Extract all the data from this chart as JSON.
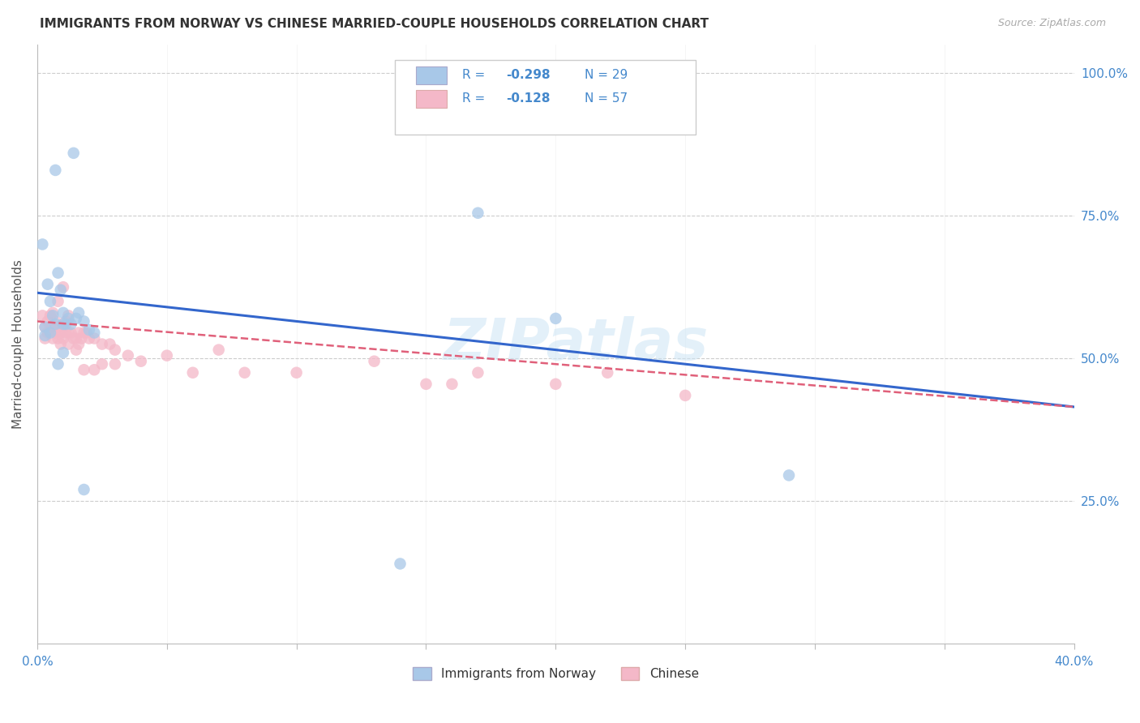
{
  "title": "IMMIGRANTS FROM NORWAY VS CHINESE MARRIED-COUPLE HOUSEHOLDS CORRELATION CHART",
  "source": "Source: ZipAtlas.com",
  "ylabel": "Married-couple Households",
  "xlim": [
    0.0,
    0.4
  ],
  "ylim": [
    0.0,
    1.05
  ],
  "yticks": [
    0.25,
    0.5,
    0.75,
    1.0
  ],
  "ytick_labels": [
    "25.0%",
    "50.0%",
    "75.0%",
    "100.0%"
  ],
  "xticks": [
    0.0,
    0.05,
    0.1,
    0.15,
    0.2,
    0.25,
    0.3,
    0.35,
    0.4
  ],
  "norway_color": "#a8c8e8",
  "chinese_color": "#f4b8c8",
  "norway_line_color": "#3366cc",
  "chinese_line_color": "#e0607a",
  "legend_text_color": "#4488cc",
  "legend_R_color": "#3366cc",
  "norway_R": -0.298,
  "norway_N": 29,
  "chinese_R": -0.128,
  "chinese_N": 57,
  "watermark": "ZIPatlas",
  "norway_line_x0": 0.0,
  "norway_line_y0": 0.615,
  "norway_line_x1": 0.4,
  "norway_line_y1": 0.415,
  "chinese_line_x0": 0.0,
  "chinese_line_y0": 0.565,
  "chinese_line_x1": 0.4,
  "chinese_line_y1": 0.415,
  "norway_x": [
    0.003,
    0.007,
    0.014,
    0.002,
    0.004,
    0.005,
    0.006,
    0.008,
    0.009,
    0.01,
    0.011,
    0.013,
    0.015,
    0.2,
    0.29,
    0.003,
    0.005,
    0.007,
    0.01,
    0.012,
    0.016,
    0.018,
    0.02,
    0.022,
    0.14,
    0.17,
    0.01,
    0.018,
    0.008
  ],
  "norway_y": [
    0.555,
    0.83,
    0.86,
    0.7,
    0.63,
    0.6,
    0.575,
    0.65,
    0.62,
    0.58,
    0.56,
    0.56,
    0.57,
    0.57,
    0.295,
    0.54,
    0.545,
    0.56,
    0.56,
    0.57,
    0.58,
    0.565,
    0.55,
    0.545,
    0.14,
    0.755,
    0.51,
    0.27,
    0.49
  ],
  "chinese_x": [
    0.002,
    0.003,
    0.003,
    0.004,
    0.004,
    0.005,
    0.005,
    0.006,
    0.006,
    0.007,
    0.007,
    0.008,
    0.008,
    0.009,
    0.009,
    0.01,
    0.01,
    0.011,
    0.011,
    0.012,
    0.012,
    0.013,
    0.014,
    0.015,
    0.015,
    0.016,
    0.016,
    0.017,
    0.018,
    0.019,
    0.02,
    0.022,
    0.025,
    0.028,
    0.03,
    0.035,
    0.04,
    0.05,
    0.06,
    0.07,
    0.08,
    0.1,
    0.13,
    0.16,
    0.2,
    0.22,
    0.25,
    0.15,
    0.17,
    0.006,
    0.008,
    0.01,
    0.012,
    0.025,
    0.03,
    0.018,
    0.022
  ],
  "chinese_y": [
    0.575,
    0.555,
    0.535,
    0.565,
    0.545,
    0.575,
    0.555,
    0.555,
    0.535,
    0.565,
    0.545,
    0.555,
    0.535,
    0.545,
    0.525,
    0.555,
    0.535,
    0.565,
    0.545,
    0.545,
    0.525,
    0.545,
    0.535,
    0.535,
    0.515,
    0.545,
    0.525,
    0.535,
    0.545,
    0.545,
    0.535,
    0.535,
    0.525,
    0.525,
    0.515,
    0.505,
    0.495,
    0.505,
    0.475,
    0.515,
    0.475,
    0.475,
    0.495,
    0.455,
    0.455,
    0.475,
    0.435,
    0.455,
    0.475,
    0.58,
    0.6,
    0.625,
    0.575,
    0.49,
    0.49,
    0.48,
    0.48
  ]
}
